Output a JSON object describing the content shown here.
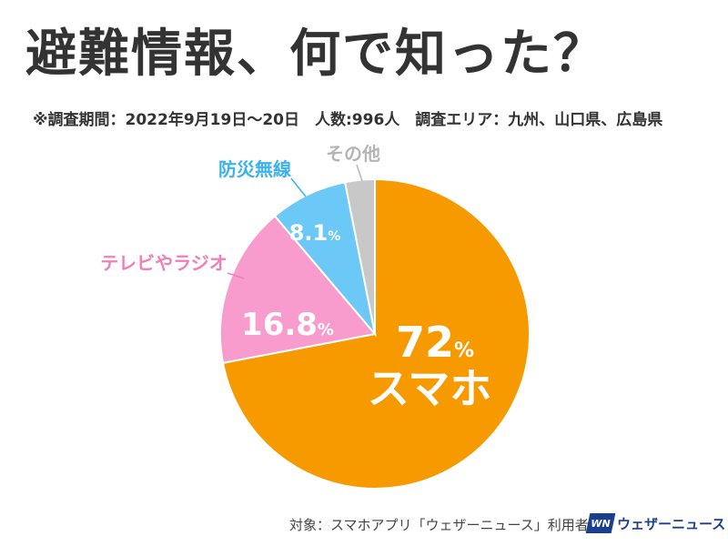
{
  "title": "避難情報、何で知った？",
  "subtitle": "※調査期間：2022年9月19日～20日　人数:996人　調査エリア：九州、山口県、広島県",
  "footer": "対象：スマホアプリ「ウェザーニュース」利用者",
  "logo": {
    "mark": "WN",
    "text": "ウェザーニュース"
  },
  "colors": {
    "smartphone": "#F79A00",
    "tv_radio": "#F79CCC",
    "disaster_radio": "#6CC8F6",
    "other": "#C8C8C8"
  },
  "chart_data": {
    "type": "pie",
    "slices": [
      {
        "label": "スマホ",
        "value": 72,
        "value_text": "72",
        "unit": "%",
        "color": "#F79A00"
      },
      {
        "label": "テレビやラジオ",
        "value": 16.8,
        "value_text": "16.8",
        "unit": "%",
        "color": "#F79CCC"
      },
      {
        "label": "防災無線",
        "value": 8.1,
        "value_text": "8.1",
        "unit": "%",
        "color": "#6CC8F6"
      },
      {
        "label": "その他",
        "value": 3.1,
        "value_text": "",
        "unit": "",
        "color": "#C8C8C8"
      }
    ]
  }
}
